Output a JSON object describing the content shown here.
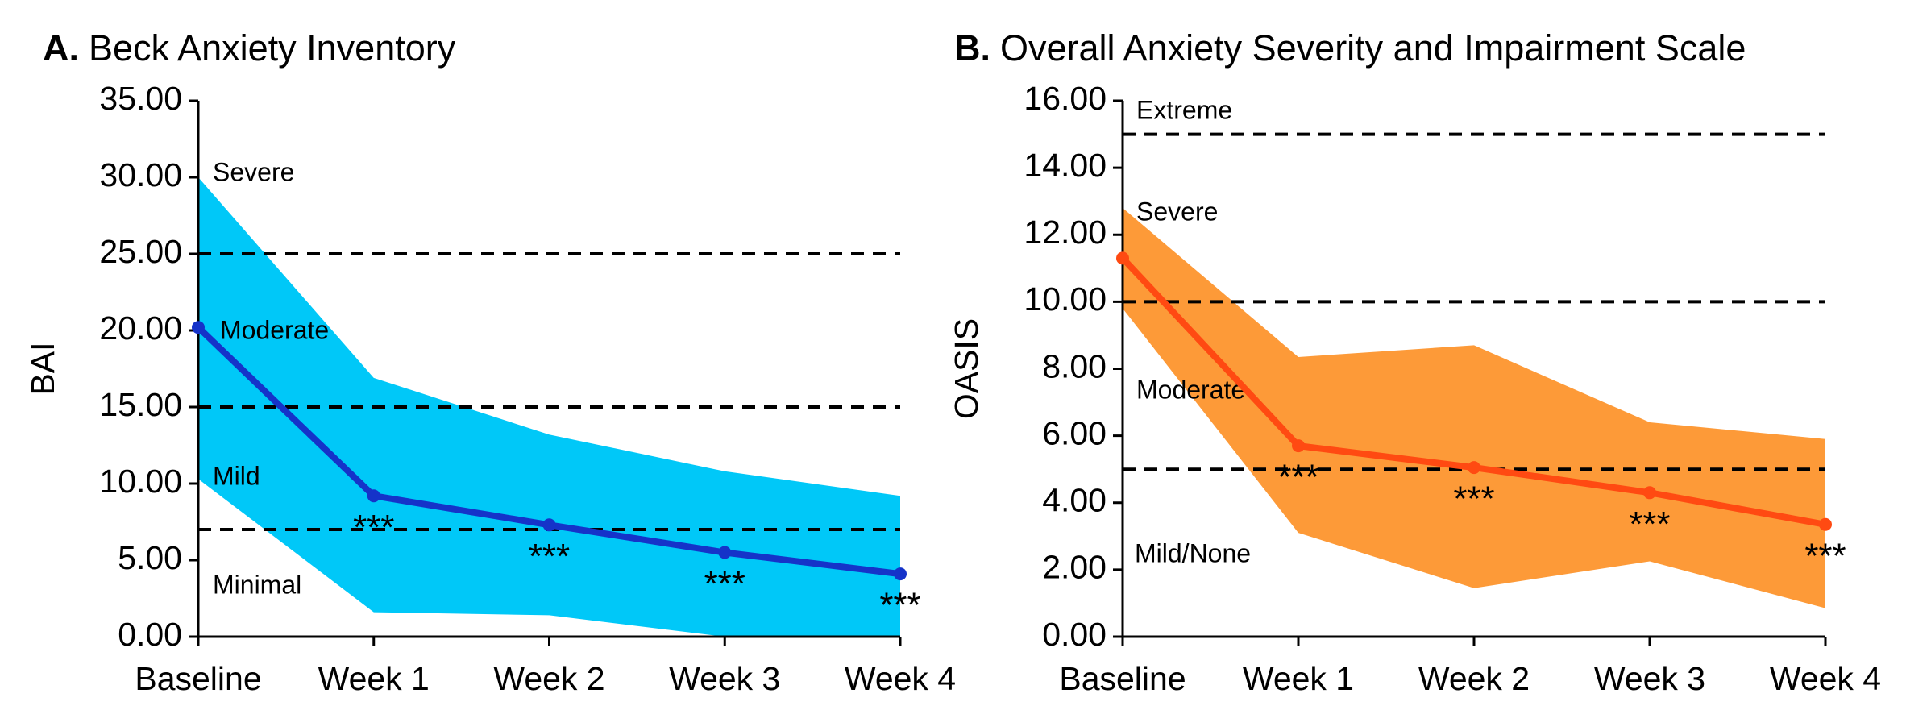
{
  "chart_data": [
    {
      "type": "line",
      "panel_label": "A.",
      "title": "Beck Anxiety Inventory",
      "y_label": "BAI",
      "categories": [
        "Baseline",
        "Week 1",
        "Week 2",
        "Week 3",
        "Week 4"
      ],
      "values": [
        20.2,
        9.2,
        7.3,
        5.5,
        4.1
      ],
      "upper": [
        30,
        16.9,
        13.2,
        10.8,
        9.2
      ],
      "lower": [
        10.3,
        1.6,
        1.4,
        0,
        0
      ],
      "color": "#1533c9",
      "band_color": "#00c8f8",
      "thresholds": [
        25,
        15,
        7
      ],
      "region_labels": [
        "Severe",
        "Moderate",
        "Mild",
        "Minimal"
      ],
      "annotations": [
        null,
        "***",
        "***",
        "***",
        "***"
      ],
      "ylim": [
        0,
        35
      ],
      "yticks": [
        {
          "value": 0,
          "label": "0.00"
        },
        {
          "value": 5,
          "label": "5.00"
        },
        {
          "value": 10,
          "label": "10.00"
        },
        {
          "value": 15,
          "label": "15.00"
        },
        {
          "value": 20,
          "label": "20.00"
        },
        {
          "value": 25,
          "label": "25.00"
        },
        {
          "value": 30,
          "label": "30.00"
        },
        {
          "value": 35,
          "label": "35.00"
        }
      ]
    },
    {
      "type": "line",
      "panel_label": "B.",
      "title": "Overall Anxiety Severity and Impairment Scale",
      "y_label": "OASIS",
      "categories": [
        "Baseline",
        "Week 1",
        "Week 2",
        "Week 3",
        "Week 4"
      ],
      "values": [
        11.3,
        5.7,
        5.05,
        4.3,
        3.35
      ],
      "upper": [
        12.8,
        8.35,
        8.7,
        6.4,
        5.9
      ],
      "lower": [
        9.8,
        3.1,
        1.45,
        2.25,
        0.85
      ],
      "color": "#ff4a12",
      "band_color": "#fd9a38",
      "thresholds": [
        15,
        10,
        5
      ],
      "region_labels": [
        "Extreme",
        "Severe",
        "Moderate",
        "Mild/None"
      ],
      "annotations": [
        null,
        "***",
        "***",
        "***",
        "***"
      ],
      "ylim": [
        0,
        16
      ],
      "yticks": [
        {
          "value": 0,
          "label": "0.00"
        },
        {
          "value": 2,
          "label": "2.00"
        },
        {
          "value": 4,
          "label": "4.00"
        },
        {
          "value": 6,
          "label": "6.00"
        },
        {
          "value": 8,
          "label": "8.00"
        },
        {
          "value": 10,
          "label": "10.00"
        },
        {
          "value": 12,
          "label": "12.00"
        },
        {
          "value": 14,
          "label": "14.00"
        },
        {
          "value": 16,
          "label": "16.00"
        }
      ]
    }
  ]
}
